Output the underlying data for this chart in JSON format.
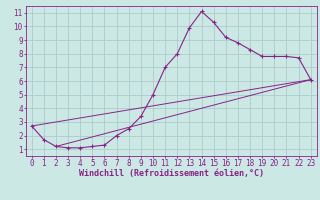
{
  "bg_color": "#cce8e4",
  "grid_color": "#aacccc",
  "line_color": "#882288",
  "spine_color": "#882288",
  "xlabel": "Windchill (Refroidissement éolien,°C)",
  "xlim": [
    -0.5,
    23.5
  ],
  "ylim": [
    0.5,
    11.5
  ],
  "xticks": [
    0,
    1,
    2,
    3,
    4,
    5,
    6,
    7,
    8,
    9,
    10,
    11,
    12,
    13,
    14,
    15,
    16,
    17,
    18,
    19,
    20,
    21,
    22,
    23
  ],
  "yticks": [
    1,
    2,
    3,
    4,
    5,
    6,
    7,
    8,
    9,
    10,
    11
  ],
  "curve1_x": [
    0,
    1,
    2,
    3,
    4,
    5,
    6,
    7,
    8,
    9,
    10,
    11,
    12,
    13,
    14,
    15,
    16,
    17,
    18,
    19,
    20,
    21,
    22,
    23
  ],
  "curve1_y": [
    2.7,
    1.7,
    1.2,
    1.1,
    1.1,
    1.2,
    1.3,
    2.0,
    2.5,
    3.4,
    5.0,
    7.0,
    8.0,
    9.9,
    11.1,
    10.3,
    9.2,
    8.8,
    8.3,
    7.8,
    7.8,
    7.8,
    7.7,
    6.1
  ],
  "line2_x": [
    0,
    23
  ],
  "line2_y": [
    2.7,
    6.1
  ],
  "line3_x": [
    2,
    23
  ],
  "line3_y": [
    1.2,
    6.1
  ],
  "figsize": [
    3.2,
    2.0
  ],
  "dpi": 100,
  "tick_fontsize": 5.5,
  "label_fontsize": 6.0
}
